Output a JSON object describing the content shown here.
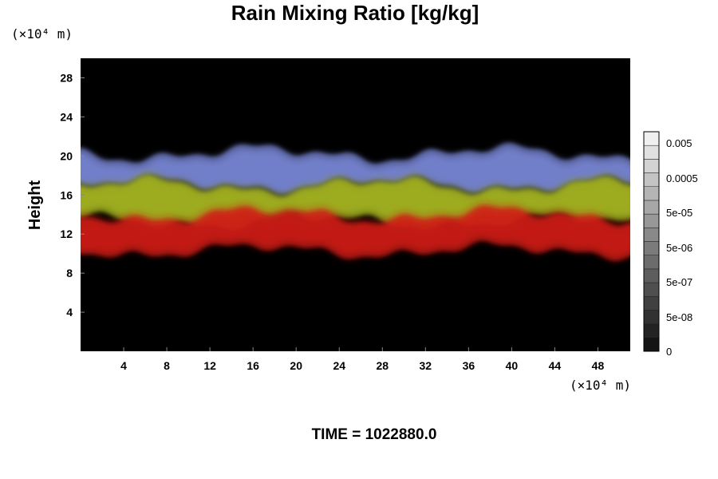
{
  "chart_data": {
    "type": "heatmap",
    "title": "Rain Mixing Ratio [kg/kg]",
    "ylabel": "Height",
    "x_unit": "(×10⁴ m)",
    "y_unit": "(×10⁴ m)",
    "xlim": [
      0,
      51
    ],
    "ylim": [
      0,
      30
    ],
    "x_ticks": [
      4,
      8,
      12,
      16,
      20,
      24,
      28,
      32,
      36,
      40,
      44,
      48
    ],
    "y_ticks": [
      4,
      8,
      12,
      16,
      20,
      24,
      28
    ],
    "colorbar": {
      "scale": "log",
      "tick_labels": [
        "0.005",
        "0.0005",
        "5e-05",
        "5e-06",
        "5e-07",
        "5e-08",
        "0"
      ],
      "n_levels": 16
    },
    "bands": [
      {
        "layer": "blue",
        "y_range": [
          17,
          20
        ],
        "color": "#7a88d8"
      },
      {
        "layer": "yellow-green",
        "y_range": [
          13.5,
          17
        ],
        "color": "#a9b820"
      },
      {
        "layer": "red",
        "y_range": [
          10.5,
          14
        ],
        "color": "#d01a12"
      }
    ],
    "background_color": "#000000"
  },
  "footer": {
    "time_label": "TIME = 1022880.0"
  }
}
